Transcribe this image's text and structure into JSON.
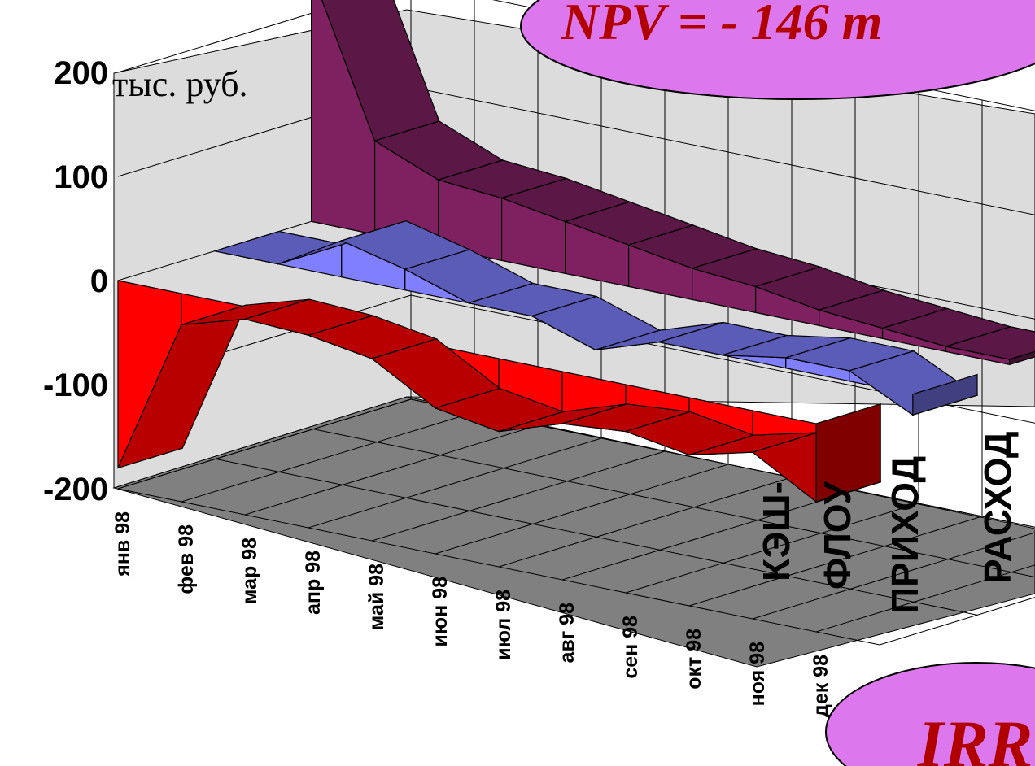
{
  "chart_data": {
    "type": "area",
    "unit_label": "тыс. руб.",
    "ylim": [
      -200,
      200
    ],
    "yticks": [
      {
        "value": 200,
        "label": "200"
      },
      {
        "value": 100,
        "label": "100"
      },
      {
        "value": 0,
        "label": "0"
      },
      {
        "value": -100,
        "label": "-100"
      },
      {
        "value": -200,
        "label": "-200"
      }
    ],
    "categories": [
      "янв 98",
      "фев 98",
      "мар 98",
      "апр 98",
      "май 98",
      "июн 98",
      "июл 98",
      "авг 98",
      "сен 98",
      "окт 98",
      "ноя 98",
      "дек 98"
    ],
    "series": [
      {
        "name": "КЭШ-ФЛОУ",
        "color": "#ff0000",
        "values": [
          -180,
          -30,
          -12,
          -15,
          -25,
          -60,
          -70,
          -50,
          -45,
          -55,
          -40,
          -75
        ]
      },
      {
        "name": "ПРИХОД",
        "color": "#7f7fff",
        "values": [
          0,
          0,
          35,
          20,
          0,
          0,
          -20,
          0,
          0,
          10,
          10,
          -20
        ]
      },
      {
        "name": "РАСХОД",
        "color": "#7f2060",
        "values": [
          240,
          90,
          65,
          60,
          50,
          40,
          30,
          25,
          15,
          10,
          5,
          5
        ]
      }
    ],
    "grid": true
  },
  "annotations": {
    "npv_text": "NPV = - 146 т",
    "irr_text": "IRR"
  },
  "colors": {
    "bubble_fill": "#dd77ee",
    "annotation_text": "#b00000",
    "floor": "#808080",
    "walls": "#d8d8d8"
  }
}
